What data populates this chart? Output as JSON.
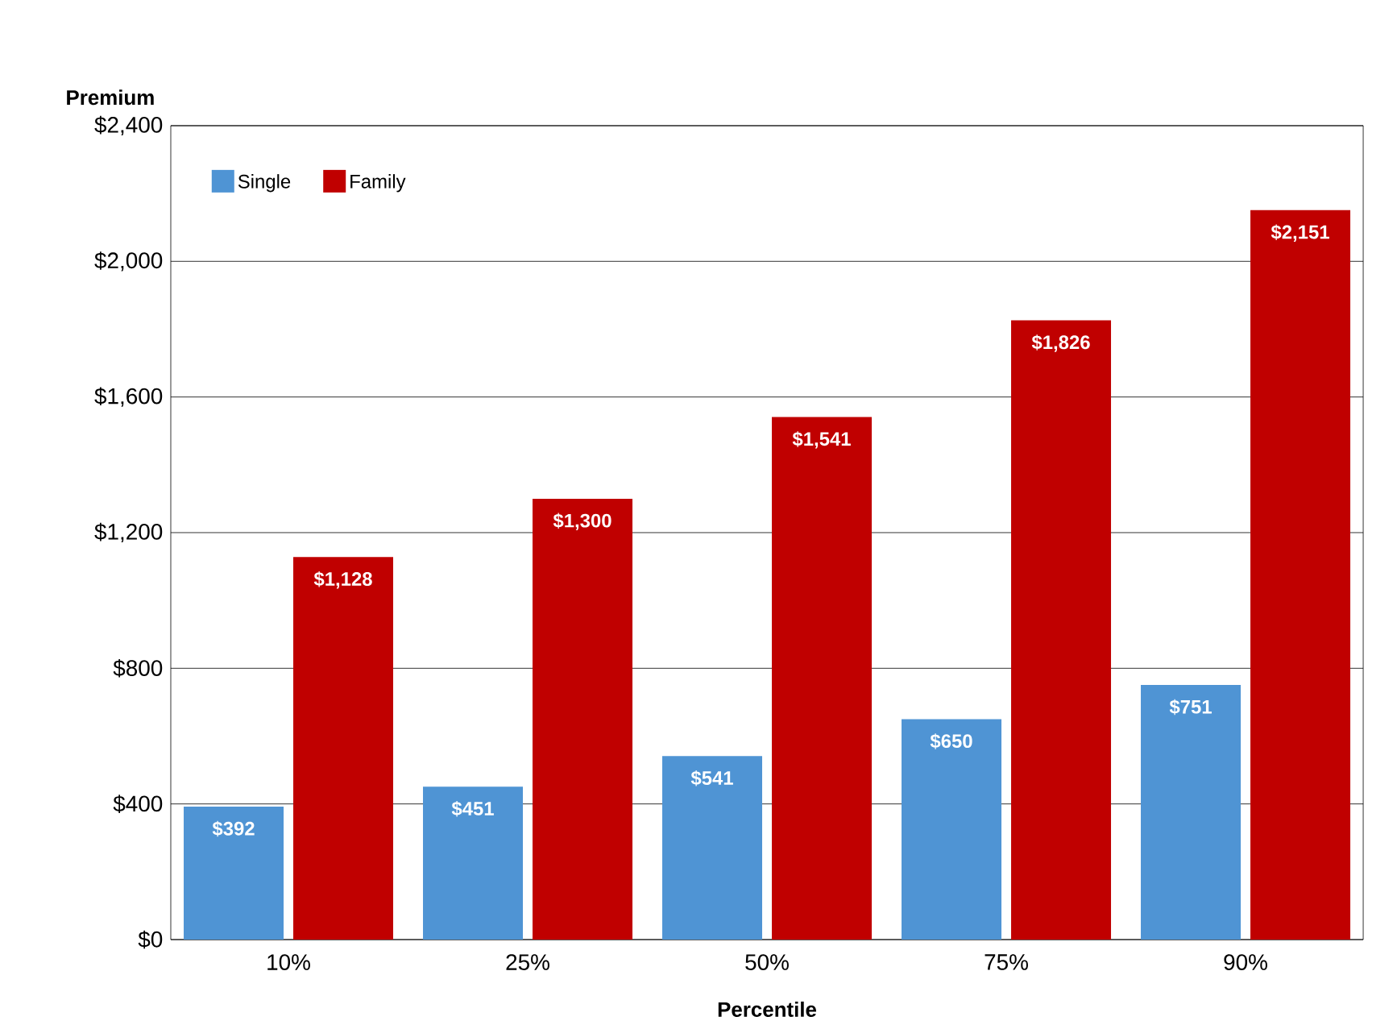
{
  "chart_data": {
    "type": "bar",
    "xlabel": "Percentile",
    "ylabel": "Premium",
    "categories": [
      "10%",
      "25%",
      "50%",
      "75%",
      "90%"
    ],
    "series": [
      {
        "name": "Single",
        "color": "#4f94d4",
        "values": [
          392,
          451,
          541,
          650,
          751
        ],
        "value_labels": [
          "$392",
          "$451",
          "$541",
          "$650",
          "$751"
        ]
      },
      {
        "name": "Family",
        "color": "#c00000",
        "values": [
          1128,
          1300,
          1541,
          1826,
          2151
        ],
        "value_labels": [
          "$1,128",
          "$1,300",
          "$1,541",
          "$1,826",
          "$2,151"
        ]
      }
    ],
    "ylim": [
      0,
      2400
    ],
    "yticks": [
      {
        "value": 0,
        "label": "$0"
      },
      {
        "value": 400,
        "label": "$400"
      },
      {
        "value": 800,
        "label": "$800"
      },
      {
        "value": 1200,
        "label": "$1,200"
      },
      {
        "value": 1600,
        "label": "$1,600"
      },
      {
        "value": 2000,
        "label": "$2,000"
      },
      {
        "value": 2400,
        "label": "$2,400"
      }
    ],
    "grid": "y",
    "legend": "top left"
  }
}
